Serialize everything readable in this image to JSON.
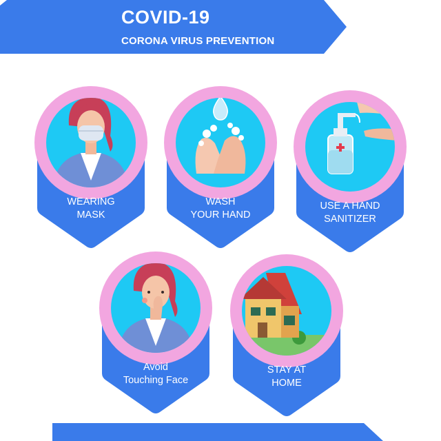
{
  "header": {
    "title": "COVID-19",
    "subtitle": "CORONA VIRUS PREVENTION"
  },
  "cards": [
    {
      "line1": "WEARING",
      "line2": "MASK"
    },
    {
      "line1": "WASH",
      "line2": "YOUR HAND"
    },
    {
      "line1": "USE A HAND",
      "line2": "SANITIZER"
    },
    {
      "line1": "Avoid",
      "line2": "Touching Face"
    },
    {
      "line1": "STAY AT",
      "line2": "HOME"
    }
  ],
  "colors": {
    "brand_blue": "#3a7bea",
    "ring_pink": "#f2a6e0",
    "inner_cyan": "#1ec9f4"
  },
  "icons": [
    "mask-person-icon",
    "hand-wash-icon",
    "sanitizer-icon",
    "touch-face-icon",
    "house-icon"
  ]
}
